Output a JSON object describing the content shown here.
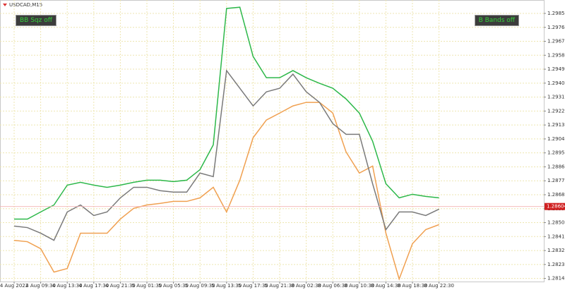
{
  "chart_data": {
    "type": "line",
    "title": "USDCAD,M15",
    "categories": [
      "4 Aug 2022",
      null,
      "4 Aug 09:30",
      null,
      "4 Aug 13:30",
      null,
      "4 Aug 17:30",
      null,
      "4 Aug 21:30",
      null,
      "5 Aug 01:30",
      null,
      "5 Aug 05:30",
      null,
      "5 Aug 09:30",
      null,
      "5 Aug 13:30",
      null,
      "5 Aug 17:30",
      null,
      "5 Aug 21:30",
      null,
      "8 Aug 02:30",
      null,
      "8 Aug 06:30",
      null,
      "8 Aug 10:30",
      null,
      "8 Aug 14:30",
      null,
      "8 Aug 18:30",
      null,
      "8 Aug 22:30"
    ],
    "series": [
      {
        "color": "#2db84a",
        "values": [
          1.28523,
          1.28523,
          1.28569,
          1.28614,
          1.28742,
          1.2876,
          1.28742,
          1.28728,
          1.28742,
          1.2876,
          1.28774,
          1.28774,
          1.28765,
          1.28774,
          1.28842,
          1.29002,
          1.29882,
          1.2989,
          1.29572,
          1.29435,
          1.29435,
          1.29481,
          1.29435,
          1.29399,
          1.29367,
          1.29298,
          1.29207,
          1.29025,
          1.28751,
          1.2866,
          1.28683,
          1.28669,
          1.2866
        ]
      },
      {
        "color": "#f0a050",
        "values": [
          1.28386,
          1.28377,
          1.28332,
          1.28181,
          1.28204,
          1.28432,
          1.28432,
          1.28432,
          1.28523,
          1.28592,
          1.28614,
          1.28624,
          1.28637,
          1.28637,
          1.2866,
          1.28728,
          1.28569,
          1.28774,
          1.29048,
          1.29162,
          1.29207,
          1.29253,
          1.29276,
          1.29276,
          1.29207,
          1.28956,
          1.2882,
          1.28865,
          1.28432,
          1.28136,
          1.28364,
          1.28455,
          1.28487
        ]
      },
      {
        "color": "#7a7a7a",
        "values": [
          1.28478,
          1.28468,
          1.28432,
          1.28386,
          1.28569,
          1.28614,
          1.28546,
          1.28569,
          1.2866,
          1.28728,
          1.28728,
          1.28706,
          1.28697,
          1.28697,
          1.2882,
          1.28797,
          1.29481,
          1.29367,
          1.29253,
          1.29344,
          1.29367,
          1.29458,
          1.29344,
          1.29276,
          1.29139,
          1.2907,
          1.2907,
          1.28751,
          1.28455,
          1.28569,
          1.28569,
          1.28546,
          1.28587
        ]
      }
    ],
    "ylim": [
      1.2812,
      1.299
    ],
    "yticks": [
      {
        "value": 1.2814,
        "label": "1.28140"
      },
      {
        "value": 1.2823,
        "label": "1.28230"
      },
      {
        "value": 1.2832,
        "label": "1.28320"
      },
      {
        "value": 1.2841,
        "label": "1.28410"
      },
      {
        "value": 1.285,
        "label": "1.28500"
      },
      {
        "value": 1.2859,
        "label": "1.28590"
      },
      {
        "value": 1.2868,
        "label": "1.28680"
      },
      {
        "value": 1.2877,
        "label": "1.28770"
      },
      {
        "value": 1.2886,
        "label": "1.28860"
      },
      {
        "value": 1.2895,
        "label": "1.28950"
      },
      {
        "value": 1.2904,
        "label": "1.29040"
      },
      {
        "value": 1.2913,
        "label": "1.29130"
      },
      {
        "value": 1.2922,
        "label": "1.29220"
      },
      {
        "value": 1.2931,
        "label": "1.29310"
      },
      {
        "value": 1.294,
        "label": "1.29400"
      },
      {
        "value": 1.2949,
        "label": "1.29490"
      },
      {
        "value": 1.2958,
        "label": "1.29580"
      },
      {
        "value": 1.2967,
        "label": "1.29670"
      },
      {
        "value": 1.2976,
        "label": "1.29760"
      },
      {
        "value": 1.2985,
        "label": "1.29850"
      }
    ],
    "grid": true,
    "current_price": 1.28604,
    "buttons": [
      "BB Sqz off",
      "B Bands off"
    ]
  }
}
